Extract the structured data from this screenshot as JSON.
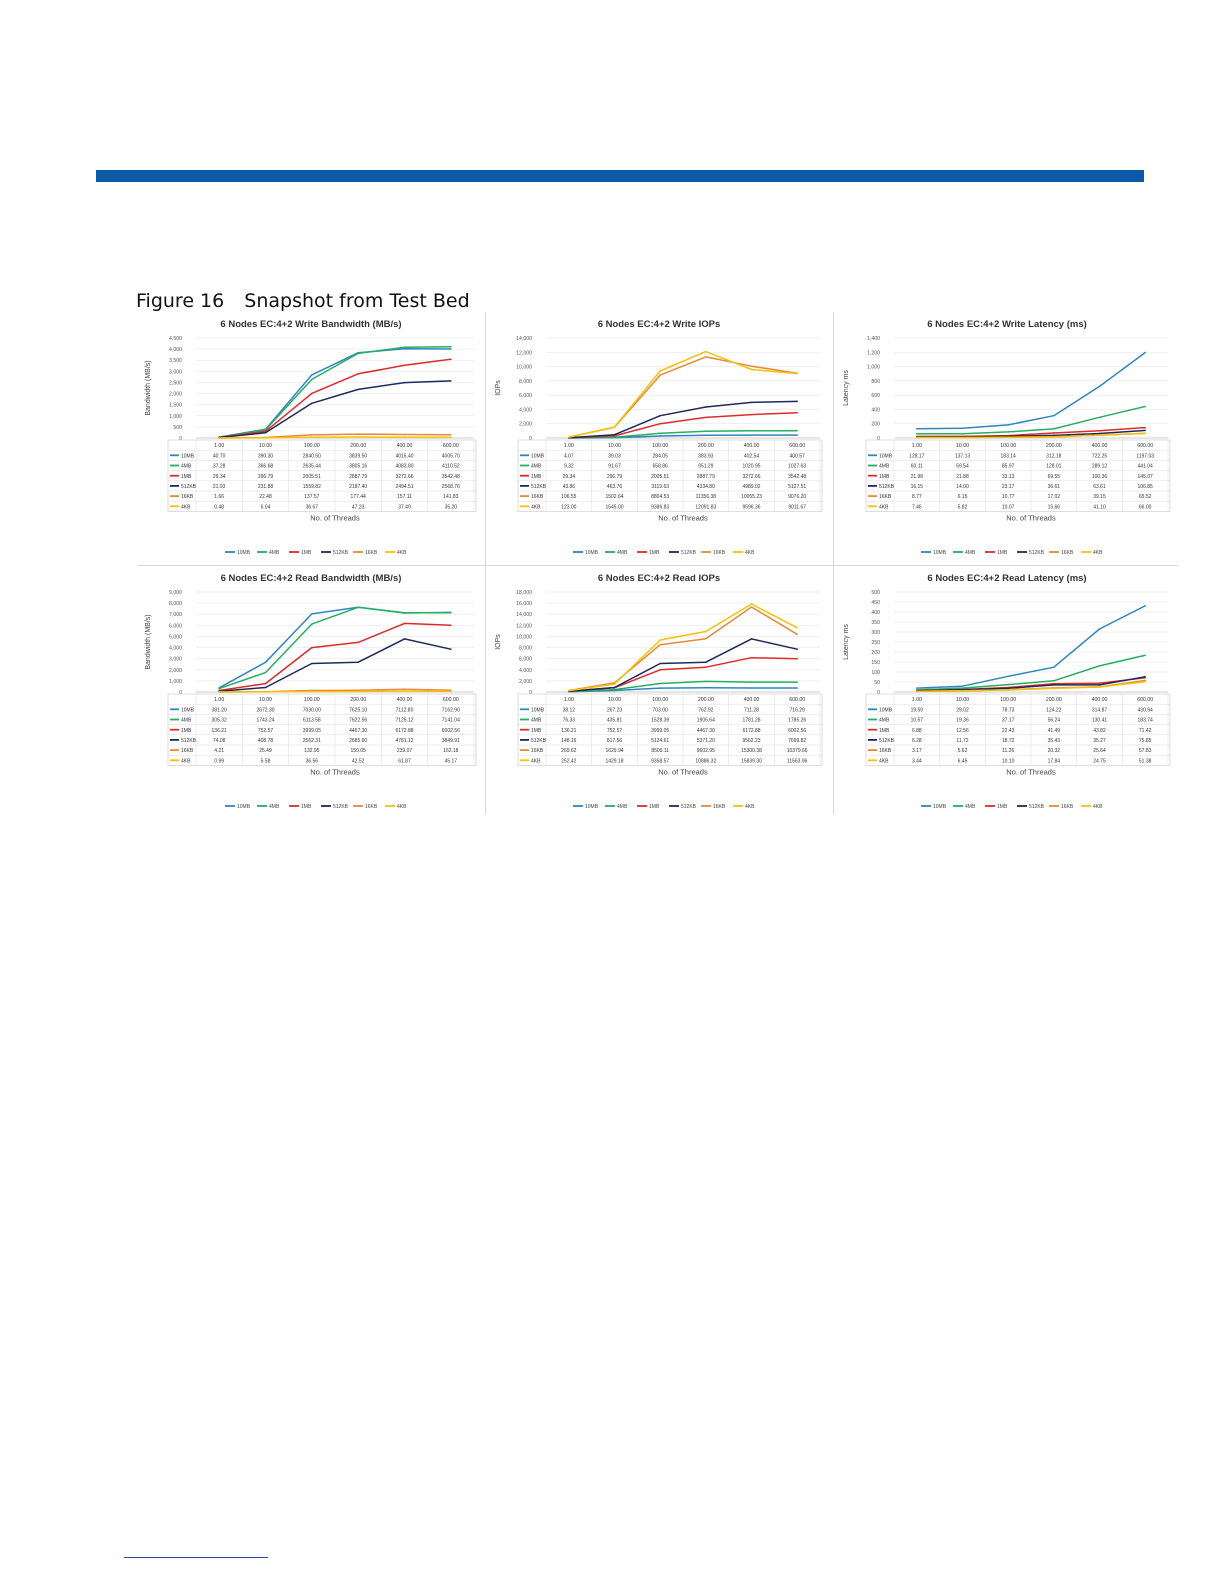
{
  "figure": {
    "number": "Figure 16",
    "title": "Snapshot from Test Bed"
  },
  "colors": {
    "accent_bar": "#0a5aa5",
    "10MB": "#2e86c1",
    "4MB": "#27ae60",
    "1MB": "#e02a2a",
    "512KB": "#1c2a5e",
    "16KB": "#e8883a",
    "4KB": "#f5c20a"
  },
  "chart_data": [
    {
      "type": "line",
      "title": "6 Nodes EC:4+2 Write Bandwidth (MB/s)",
      "xlabel": "No. of Threads",
      "ylabel": "Bandwidth (MB/s)",
      "ylim": [
        0,
        4500
      ],
      "yticks": [
        "0",
        "500",
        "1,000",
        "1,500",
        "2,000",
        "2,500",
        "3,000",
        "3,500",
        "4,000",
        "4,500"
      ],
      "categories": [
        "1.00",
        "10.00",
        "100.00",
        "200.00",
        "400.00",
        "600.00"
      ],
      "legend_position": "bottom",
      "series": [
        {
          "name": "10MB",
          "values": [
            40.7,
            390.3,
            2840.5,
            3839.5,
            4015.4,
            4005.7
          ],
          "labels": [
            "40.70",
            "390.30",
            "2840.50",
            "3839.50",
            "4015.40",
            "4005.70"
          ]
        },
        {
          "name": "4MB",
          "values": [
            37.28,
            366.68,
            2635.44,
            3805.16,
            4083.8,
            4110.52
          ],
          "labels": [
            "37.28",
            "366.68",
            "2635.44",
            "3805.16",
            "4083.80",
            "4110.52"
          ]
        },
        {
          "name": "1MB",
          "values": [
            29.34,
            296.79,
            2005.51,
            2887.79,
            3272.66,
            3542.48
          ],
          "labels": [
            "29.34",
            "296.79",
            "2005.51",
            "2887.79",
            "3272.66",
            "3542.48"
          ]
        },
        {
          "name": "512KB",
          "values": [
            21.93,
            231.88,
            1559.82,
            2187.4,
            2494.51,
            2568.76
          ],
          "labels": [
            "21.93",
            "231.88",
            "1559.82",
            "2187.40",
            "2494.51",
            "2568.76"
          ]
        },
        {
          "name": "16KB",
          "values": [
            1.66,
            22.48,
            137.57,
            177.44,
            157.11,
            141.83
          ],
          "labels": [
            "1.66",
            "22.48",
            "137.57",
            "177.44",
            "157.11",
            "141.83"
          ]
        },
        {
          "name": "4KB",
          "values": [
            0.48,
            6.04,
            36.67,
            47.23,
            37.49,
            35.2
          ],
          "labels": [
            "0.48",
            "6.04",
            "36.67",
            "47.23",
            "37.49",
            "35.20"
          ]
        }
      ]
    },
    {
      "type": "line",
      "title": "6 Nodes EC:4+2 Write IOPs",
      "xlabel": "No. of Threads",
      "ylabel": "IOPs",
      "ylim": [
        0,
        14000
      ],
      "yticks": [
        "0",
        "2,000",
        "4,000",
        "6,000",
        "8,000",
        "10,000",
        "12,000",
        "14,000"
      ],
      "categories": [
        "1.00",
        "10.00",
        "100.00",
        "200.00",
        "400.00",
        "600.00"
      ],
      "legend_position": "bottom",
      "series": [
        {
          "name": "10MB",
          "values": [
            4.07,
            39.03,
            284.05,
            383.93,
            402.54,
            400.57
          ],
          "labels": [
            "4.07",
            "39.03",
            "284.05",
            "383.93",
            "402.54",
            "400.57"
          ]
        },
        {
          "name": "4MB",
          "values": [
            9.32,
            91.67,
            658.86,
            951.29,
            1020.95,
            1027.63
          ],
          "labels": [
            "9.32",
            "91.67",
            "658.86",
            "951.29",
            "1020.95",
            "1027.63"
          ]
        },
        {
          "name": "1MB",
          "values": [
            29.34,
            296.79,
            2005.51,
            2887.79,
            3272.66,
            3542.48
          ],
          "labels": [
            "29.34",
            "296.79",
            "2005.51",
            "2887.79",
            "3272.66",
            "3542.48"
          ]
        },
        {
          "name": "512KB",
          "values": [
            43.86,
            463.76,
            3119.63,
            4334.8,
            4989.02,
            5127.51
          ],
          "labels": [
            "43.86",
            "463.76",
            "3119.63",
            "4334.80",
            "4989.02",
            "5127.51"
          ]
        },
        {
          "name": "16KB",
          "values": [
            106.55,
            1502.64,
            8804.53,
            11356.38,
            10055.23,
            9076.2
          ],
          "labels": [
            "106.55",
            "1502.64",
            "8804.53",
            "11356.38",
            "10055.23",
            "9076.20"
          ]
        },
        {
          "name": "4KB",
          "values": [
            123.0,
            1545.0,
            9386.83,
            12091.83,
            9596.36,
            9011.67
          ],
          "labels": [
            "123.00",
            "1545.00",
            "9386.83",
            "12091.83",
            "9596.36",
            "9011.67"
          ]
        }
      ]
    },
    {
      "type": "line",
      "title": "6 Nodes EC:4+2 Write Latency (ms)",
      "xlabel": "No. of Threads",
      "ylabel": "Latency ms",
      "ylim": [
        0,
        1400
      ],
      "yticks": [
        "0",
        "200",
        "400",
        "600",
        "800",
        "1,000",
        "1,200",
        "1,400"
      ],
      "categories": [
        "1.00",
        "10.00",
        "100.00",
        "200.00",
        "400.00",
        "600.00"
      ],
      "legend_position": "bottom",
      "series": [
        {
          "name": "10MB",
          "values": [
            128.17,
            137.13,
            183.14,
            312.18,
            722.25,
            1197.03
          ],
          "labels": [
            "128.17",
            "137.13",
            "183.14",
            "312.18",
            "722.25",
            "1197.03"
          ]
        },
        {
          "name": "4MB",
          "values": [
            60.11,
            59.54,
            85.97,
            128.01,
            289.12,
            441.04
          ],
          "labels": [
            "60.11",
            "59.54",
            "85.97",
            "128.01",
            "289.12",
            "441.04"
          ]
        },
        {
          "name": "1MB",
          "values": [
            21.98,
            21.88,
            33.13,
            69.55,
            100.36,
            145.07
          ],
          "labels": [
            "21.98",
            "21.88",
            "33.13",
            "69.55",
            "100.36",
            "145.07"
          ]
        },
        {
          "name": "512KB",
          "values": [
            16.15,
            14.0,
            23.17,
            36.61,
            63.61,
            106.85
          ],
          "labels": [
            "16.15",
            "14.00",
            "23.17",
            "36.61",
            "63.61",
            "106.85"
          ]
        },
        {
          "name": "16KB",
          "values": [
            8.77,
            6.15,
            10.77,
            17.02,
            39.15,
            65.52
          ],
          "labels": [
            "8.77",
            "6.15",
            "10.77",
            "17.02",
            "39.15",
            "65.52"
          ]
        },
        {
          "name": "4KB",
          "values": [
            7.46,
            5.82,
            10.07,
            15.66,
            41.1,
            66.0
          ],
          "labels": [
            "7.46",
            "5.82",
            "10.07",
            "15.66",
            "41.10",
            "66.00"
          ]
        }
      ]
    },
    {
      "type": "line",
      "title": "6 Nodes EC:4+2 Read Bandwidth  (MB/s)",
      "xlabel": "No. of Threads",
      "ylabel": "Bandwidth (MB/s)",
      "ylim": [
        0,
        9000
      ],
      "yticks": [
        "0",
        "1,000",
        "2,000",
        "3,000",
        "4,000",
        "5,000",
        "6,000",
        "7,000",
        "8,000",
        "9,000"
      ],
      "categories": [
        "1.00",
        "10.00",
        "100.00",
        "200.00",
        "400.00",
        "600.00"
      ],
      "legend_position": "bottom",
      "series": [
        {
          "name": "10MB",
          "values": [
            381.2,
            2672.3,
            7030.0,
            7625.1,
            7112.8,
            7162.9
          ],
          "labels": [
            "381.20",
            "2672.30",
            "7030.00",
            "7625.10",
            "7112.80",
            "7162.90"
          ]
        },
        {
          "name": "4MB",
          "values": [
            305.32,
            1743.24,
            6113.58,
            7622.56,
            7125.12,
            7141.04
          ],
          "labels": [
            "305.32",
            "1743.24",
            "6113.58",
            "7622.56",
            "7125.12",
            "7141.04"
          ]
        },
        {
          "name": "1MB",
          "values": [
            136.21,
            752.57,
            3999.05,
            4467.3,
            6172.88,
            6002.56
          ],
          "labels": [
            "136.21",
            "752.57",
            "3999.05",
            "4467.30",
            "6172.88",
            "6002.56"
          ]
        },
        {
          "name": "512KB",
          "values": [
            74.08,
            408.78,
            2562.31,
            2685.6,
            4781.12,
            3849.91
          ],
          "labels": [
            "74.08",
            "408.78",
            "2562.31",
            "2685.60",
            "4781.12",
            "3849.91"
          ]
        },
        {
          "name": "16KB",
          "values": [
            4.21,
            25.49,
            132.95,
            150.05,
            239.07,
            162.18
          ],
          "labels": [
            "4.21",
            "25.49",
            "132.95",
            "150.05",
            "239.07",
            "162.18"
          ]
        },
        {
          "name": "4KB",
          "values": [
            0.99,
            5.58,
            36.56,
            42.52,
            61.87,
            45.17
          ],
          "labels": [
            "0.99",
            "5.58",
            "36.56",
            "42.52",
            "61.87",
            "45.17"
          ]
        }
      ]
    },
    {
      "type": "line",
      "title": "6 Nodes EC:4+2 Read IOPs",
      "xlabel": "No. of Threads",
      "ylabel": "IOPs",
      "ylim": [
        0,
        18000
      ],
      "yticks": [
        "0",
        "2,000",
        "4,000",
        "6,000",
        "8,000",
        "10,000",
        "12,000",
        "14,000",
        "16,000",
        "18,000"
      ],
      "categories": [
        "1.00",
        "10.00",
        "100.00",
        "200.00",
        "400.00",
        "600.00"
      ],
      "legend_position": "bottom",
      "series": [
        {
          "name": "10MB",
          "values": [
            38.12,
            267.23,
            703.0,
            762.92,
            711.28,
            716.29
          ],
          "labels": [
            "38.12",
            "267.23",
            "703.00",
            "762.92",
            "711.28",
            "716.29"
          ]
        },
        {
          "name": "4MB",
          "values": [
            76.33,
            435.81,
            1528.39,
            1905.64,
            1781.28,
            1785.26
          ],
          "labels": [
            "76.33",
            "435.81",
            "1528.39",
            "1905.64",
            "1781.28",
            "1785.26"
          ]
        },
        {
          "name": "1MB",
          "values": [
            136.21,
            752.57,
            3999.05,
            4467.3,
            6172.88,
            6002.56
          ],
          "labels": [
            "136.21",
            "752.57",
            "3999.05",
            "4467.30",
            "6172.88",
            "6002.56"
          ]
        },
        {
          "name": "512KB",
          "values": [
            148.16,
            817.56,
            5124.61,
            5371.2,
            9562.23,
            7699.82
          ],
          "labels": [
            "148.16",
            "817.56",
            "5124.61",
            "5371.20",
            "9562.23",
            "7699.82"
          ]
        },
        {
          "name": "16KB",
          "values": [
            269.62,
            1629.94,
            8509.11,
            9602.95,
            15300.38,
            10379.66
          ],
          "labels": [
            "269.62",
            "1629.94",
            "8509.11",
            "9602.95",
            "15300.38",
            "10379.66"
          ]
        },
        {
          "name": "4KB",
          "values": [
            252.42,
            1429.18,
            9358.57,
            10886.32,
            15839.3,
            11563.96
          ],
          "labels": [
            "252.42",
            "1429.18",
            "9358.57",
            "10886.32",
            "15839.30",
            "11563.96"
          ]
        }
      ]
    },
    {
      "type": "line",
      "title": "6 Nodes EC:4+2 Read Latency (ms)",
      "xlabel": "No. of Threads",
      "ylabel": "Latency ms",
      "ylim": [
        0,
        500
      ],
      "yticks": [
        "0",
        "50",
        "100",
        "150",
        "200",
        "250",
        "300",
        "350",
        "400",
        "450",
        "500"
      ],
      "categories": [
        "1.00",
        "10.00",
        "100.00",
        "200.00",
        "400.00",
        "600.00"
      ],
      "legend_position": "bottom",
      "series": [
        {
          "name": "10MB",
          "values": [
            19.59,
            29.02,
            78.73,
            124.22,
            314.87,
            430.94
          ],
          "labels": [
            "19.59",
            "29.02",
            "78.73",
            "124.22",
            "314.87",
            "430.94"
          ]
        },
        {
          "name": "4MB",
          "values": [
            10.57,
            19.36,
            37.17,
            56.24,
            130.41,
            183.74
          ],
          "labels": [
            "10.57",
            "19.36",
            "37.17",
            "56.24",
            "130.41",
            "183.74"
          ]
        },
        {
          "name": "1MB",
          "values": [
            6.88,
            12.56,
            22.43,
            41.49,
            43.82,
            71.42
          ],
          "labels": [
            "6.88",
            "12.56",
            "22.43",
            "41.49",
            "43.82",
            "71.42"
          ]
        },
        {
          "name": "512KB",
          "values": [
            6.28,
            11.72,
            18.72,
            35.43,
            35.27,
            75.85
          ],
          "labels": [
            "6.28",
            "11.72",
            "18.72",
            "35.43",
            "35.27",
            "75.85"
          ]
        },
        {
          "name": "16KB",
          "values": [
            3.17,
            5.62,
            11.26,
            20.32,
            25.64,
            57.83
          ],
          "labels": [
            "3.17",
            "5.62",
            "11.26",
            "20.32",
            "25.64",
            "57.83"
          ]
        },
        {
          "name": "4KB",
          "values": [
            3.44,
            6.45,
            10.1,
            17.84,
            24.75,
            51.38
          ],
          "labels": [
            "3.44",
            "6.45",
            "10.10",
            "17.84",
            "24.75",
            "51.38"
          ]
        }
      ]
    }
  ]
}
